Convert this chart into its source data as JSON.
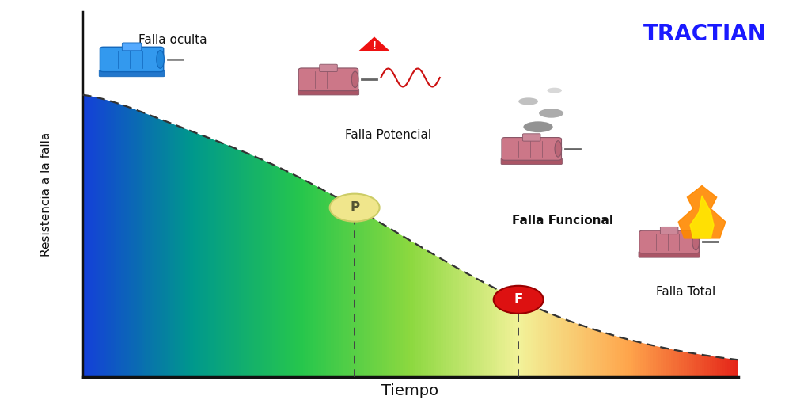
{
  "title": "TRACTIAN",
  "title_color": "#1A1AFF",
  "xlabel": "Tiempo",
  "ylabel": "Resistencia a la falla",
  "background_color": "#ffffff",
  "label_falla_oculta": "Falla oculta",
  "label_falla_potencial": "Falla Potencial",
  "label_falla_funcional": "Falla Funcional",
  "label_falla_total": "Falla Total",
  "p_label": "P",
  "f_label": "F",
  "p_bg_color": "#f0e68c",
  "p_text_color": "#555533",
  "f_bg_color": "#dd1111",
  "f_text_color": "#ffffff",
  "dashed_color": "#333333",
  "label_fontsize": 11,
  "title_fontsize": 20,
  "xlabel_fontsize": 14
}
